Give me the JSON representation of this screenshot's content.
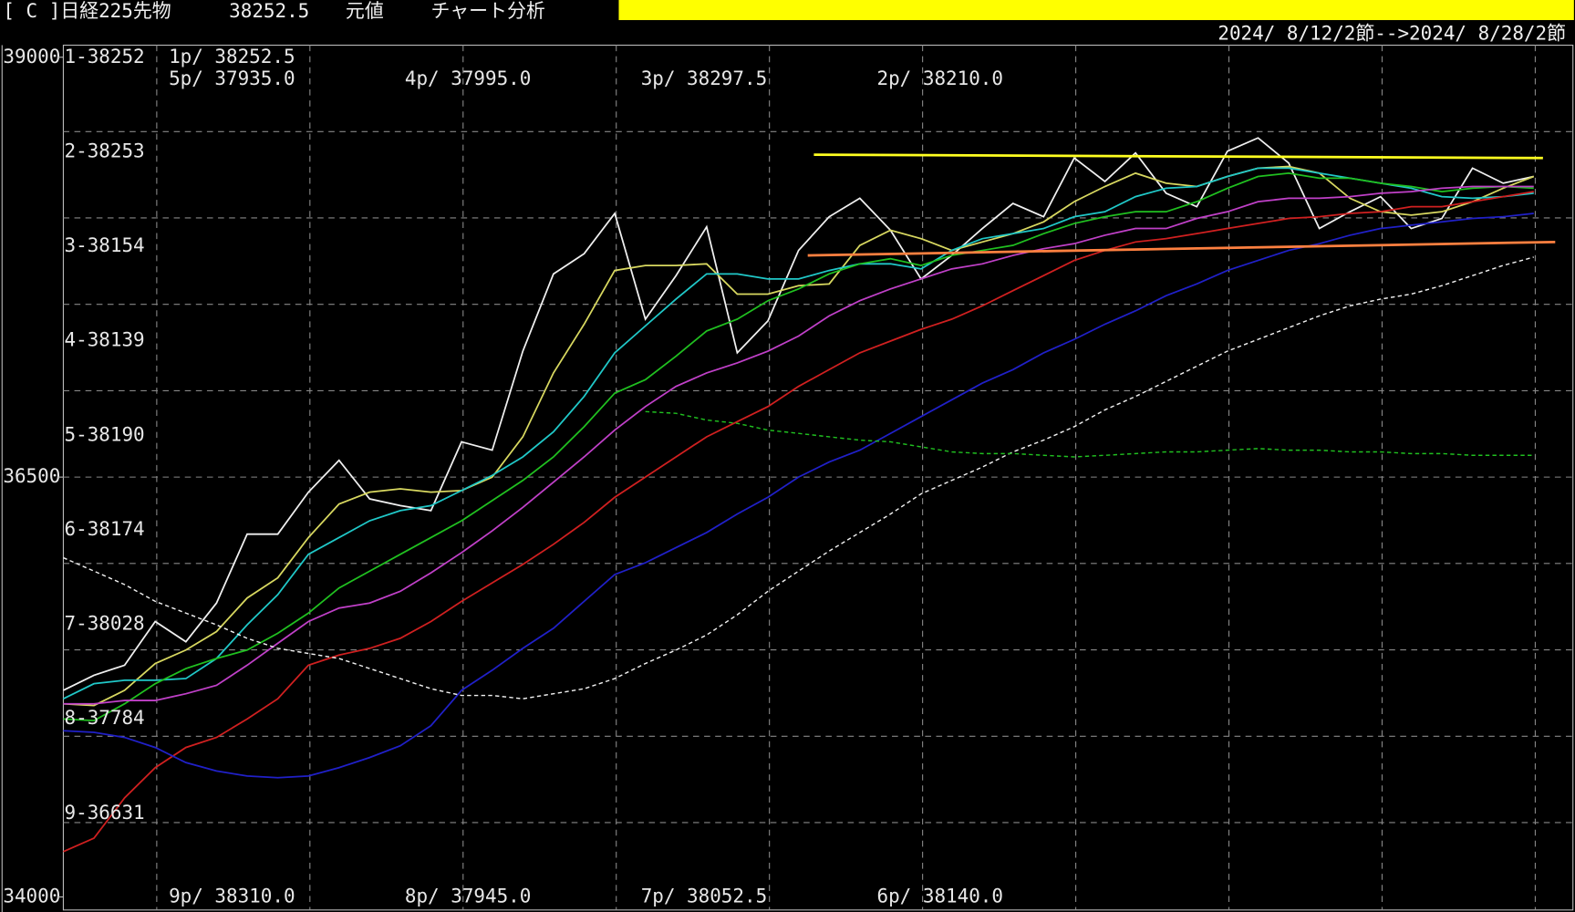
{
  "chart_data": {
    "type": "line",
    "header": [
      "[ C ]日経225先物",
      "38252.5",
      "元値",
      "チャート分析"
    ],
    "date_range": "2024/ 8/12/2節-->2024/ 8/28/2節",
    "level_labels": [
      "1-38252",
      "2-38253",
      "3-38154",
      "4-38139",
      "5-38190",
      "6-38174",
      "7-38028",
      "8-37784",
      "9-36631"
    ],
    "period_labels": [
      "1p/ 38252.5",
      "5p/ 37935.0",
      "4p/ 37995.0",
      "3p/ 38297.5",
      "2p/ 38210.0",
      "9p/ 38310.0",
      "8p/ 37945.0",
      "7p/ 38052.5",
      "6p/ 38140.0"
    ],
    "categories": [
      null,
      null,
      null,
      null,
      null,
      null,
      null,
      null,
      null,
      null,
      null,
      null,
      null,
      null,
      null,
      null,
      null,
      null,
      null,
      null,
      null,
      null,
      null,
      null,
      null,
      null,
      null,
      null,
      null,
      null,
      null,
      null,
      null,
      null,
      null,
      null,
      null,
      null,
      null,
      null,
      null,
      null,
      null,
      null,
      null,
      null,
      null,
      null,
      null
    ],
    "ylim": [
      34000,
      39000
    ],
    "yticks": [
      34000,
      36500,
      39000
    ],
    "grid": true,
    "series": [
      {
        "color": "#f0f0f0",
        "values": [
          35230,
          35320,
          35380,
          35640,
          35520,
          35750,
          36160,
          36160,
          36410,
          36600,
          36370,
          36330,
          36300,
          36710,
          36660,
          37250,
          37710,
          37830,
          38070,
          37440,
          37700,
          37990,
          37240,
          37430,
          37850,
          38050,
          38160,
          37970,
          37680,
          37820,
          37980,
          38130,
          38050,
          38400,
          38260,
          38430,
          38190,
          38110,
          38440,
          38520,
          38370,
          37980,
          38080,
          38170,
          37980,
          38040,
          38340,
          38250,
          38290
        ]
      },
      {
        "color": "#d8d860",
        "values": [
          35150,
          35140,
          35230,
          35390,
          35470,
          35580,
          35780,
          35900,
          36140,
          36340,
          36410,
          36430,
          36410,
          36420,
          36500,
          36740,
          37120,
          37410,
          37730,
          37760,
          37760,
          37770,
          37590,
          37590,
          37640,
          37650,
          37880,
          37970,
          37920,
          37850,
          37900,
          37950,
          38020,
          38140,
          38230,
          38310,
          38250,
          38230,
          38290,
          38340,
          38350,
          38310,
          38160,
          38080,
          38060,
          38080,
          38140,
          38220,
          38290
        ]
      },
      {
        "color": "#20c8c8",
        "values": [
          35180,
          35270,
          35290,
          35290,
          35300,
          35420,
          35620,
          35800,
          36040,
          36140,
          36240,
          36300,
          36330,
          36420,
          36510,
          36620,
          36770,
          36980,
          37240,
          37400,
          37560,
          37710,
          37710,
          37680,
          37680,
          37730,
          37770,
          37770,
          37740,
          37850,
          37920,
          37950,
          37980,
          38050,
          38080,
          38170,
          38220,
          38230,
          38290,
          38340,
          38340,
          38310,
          38280,
          38250,
          38220,
          38170,
          38160,
          38170,
          38190
        ]
      },
      {
        "color": "#20c020",
        "values": [
          35060,
          35050,
          35150,
          35270,
          35360,
          35420,
          35470,
          35570,
          35690,
          35840,
          35940,
          36040,
          36140,
          36240,
          36360,
          36480,
          36620,
          36800,
          37000,
          37080,
          37220,
          37370,
          37440,
          37550,
          37620,
          37710,
          37770,
          37800,
          37760,
          37820,
          37850,
          37880,
          37950,
          38010,
          38050,
          38080,
          38080,
          38140,
          38220,
          38290,
          38310,
          38280,
          38280,
          38250,
          38230,
          38200,
          38220,
          38230,
          38220
        ]
      },
      {
        "color": "#c040c8",
        "values": [
          35150,
          35150,
          35170,
          35170,
          35210,
          35260,
          35380,
          35510,
          35640,
          35720,
          35750,
          35820,
          35930,
          36050,
          36180,
          36320,
          36470,
          36620,
          36780,
          36920,
          37040,
          37120,
          37180,
          37250,
          37340,
          37460,
          37550,
          37620,
          37680,
          37740,
          37770,
          37820,
          37860,
          37890,
          37940,
          37980,
          37980,
          38040,
          38080,
          38140,
          38160,
          38160,
          38170,
          38190,
          38200,
          38220,
          38230,
          38230,
          38230
        ]
      },
      {
        "color": "#d02020",
        "values": [
          34270,
          34350,
          34590,
          34770,
          34890,
          34950,
          35060,
          35180,
          35380,
          35440,
          35480,
          35540,
          35640,
          35760,
          35870,
          35980,
          36100,
          36230,
          36380,
          36500,
          36620,
          36740,
          36830,
          36920,
          37040,
          37140,
          37240,
          37310,
          37380,
          37440,
          37520,
          37610,
          37700,
          37790,
          37850,
          37900,
          37920,
          37950,
          37980,
          38010,
          38040,
          38050,
          38070,
          38080,
          38110,
          38110,
          38140,
          38170,
          38200
        ]
      },
      {
        "color": "#2020c8",
        "values": [
          34990,
          34980,
          34950,
          34890,
          34800,
          34750,
          34720,
          34710,
          34720,
          34770,
          34830,
          34900,
          35020,
          35230,
          35350,
          35480,
          35600,
          35760,
          35920,
          35990,
          36080,
          36170,
          36280,
          36380,
          36500,
          36590,
          36660,
          36760,
          36860,
          36960,
          37060,
          37140,
          37240,
          37320,
          37410,
          37490,
          37580,
          37650,
          37730,
          37790,
          37850,
          37890,
          37940,
          37980,
          38000,
          38020,
          38040,
          38050,
          38070
        ]
      },
      {
        "color": "#f0f0f0",
        "dashed": true,
        "values": [
          36020,
          35940,
          35860,
          35760,
          35690,
          35620,
          35540,
          35480,
          35450,
          35420,
          35360,
          35300,
          35240,
          35200,
          35200,
          35180,
          35210,
          35240,
          35300,
          35390,
          35470,
          35560,
          35680,
          35820,
          35940,
          36060,
          36170,
          36280,
          36400,
          36480,
          36560,
          36650,
          36720,
          36800,
          36900,
          36980,
          37070,
          37160,
          37250,
          37320,
          37390,
          37460,
          37520,
          37560,
          37590,
          37640,
          37700,
          37760,
          37810
        ]
      },
      {
        "color": "#20c020",
        "dashed": true,
        "values": [
          null,
          null,
          null,
          null,
          null,
          null,
          null,
          null,
          null,
          null,
          null,
          null,
          null,
          null,
          null,
          null,
          null,
          null,
          null,
          36890,
          36880,
          36840,
          36820,
          36780,
          36760,
          36740,
          36720,
          36710,
          36680,
          36650,
          36640,
          36640,
          36630,
          36620,
          36630,
          36640,
          36650,
          36650,
          36660,
          36670,
          36660,
          36660,
          36650,
          36650,
          36640,
          36640,
          36630,
          36630,
          36630
        ]
      }
    ],
    "trendlines": [
      {
        "color": "#ffff20",
        "x": [
          24.5,
          48.3
        ],
        "values": [
          38420,
          38400
        ]
      },
      {
        "color": "#ff8040",
        "x": [
          24.3,
          48.7
        ],
        "values": [
          37820,
          37900
        ]
      }
    ]
  }
}
